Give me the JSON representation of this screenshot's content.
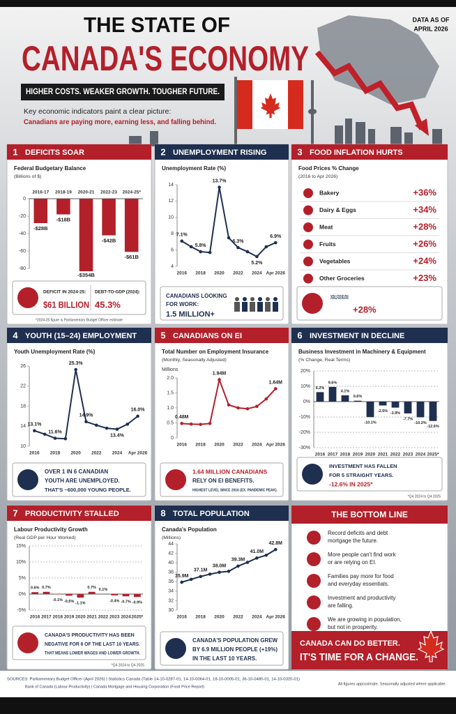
{
  "header": {
    "title_line1": "THE STATE OF",
    "title_line2": "CANADA'S ECONOMY",
    "tagline": "HIGHER COSTS. WEAKER GROWTH. TOUGHER FUTURE.",
    "intro": "Key economic indicators paint a clear picture:",
    "intro_highlight": "Canadians are paying more, earning less, and falling behind.",
    "data_as_of": "DATA AS OF",
    "date": "APRIL 2026"
  },
  "chart_data": [
    {
      "type": "bar",
      "number": "1",
      "heading": "DEFICITS SOAR",
      "subtitle": "Federal Budgetary Balance",
      "unit": "(Billions of $)",
      "categories": [
        "2016-17",
        "2018-19",
        "2020-21",
        "2022-23",
        "2024-25*"
      ],
      "values": [
        -28,
        -18,
        -354,
        -42,
        -61
      ],
      "value_labels": [
        "-$28B",
        "-$18B",
        "-$354B",
        "-$42B",
        "-$61B"
      ],
      "color": "#b3202a",
      "ylim": [
        -80,
        0
      ],
      "yticks": [
        0,
        -20,
        -40,
        -60,
        -80
      ],
      "grid": false,
      "callout": [
        "DEFICIT IN 2024-25:",
        "$61 BILLION",
        "DEBT-TO-GDP (2024):",
        "45.3%"
      ],
      "note": "*2024-25 figure is Parliamentary Budget Officer estimate"
    },
    {
      "type": "line",
      "number": "2",
      "heading": "UNEMPLOYMENT RISING",
      "subtitle": "Unemployment Rate (%)",
      "categories": [
        "2016",
        null,
        "2018",
        null,
        "2020",
        null,
        "2022",
        null,
        "2024",
        null,
        "Apr 2026"
      ],
      "values": [
        7.1,
        6.4,
        5.8,
        5.7,
        13.7,
        7.5,
        6.3,
        5.8,
        5.2,
        6.4,
        6.9
      ],
      "value_labels": [
        "7.1%",
        null,
        "5.8%",
        null,
        "13.7%",
        null,
        "6.3%",
        null,
        "5.2%",
        null,
        "6.9%"
      ],
      "color": "#1f2f4f",
      "ylim": [
        4,
        14
      ],
      "yticks": [
        4,
        6,
        8,
        10,
        12,
        14
      ],
      "grid": false,
      "callout": [
        "CANADIANS LOOKING",
        "FOR WORK:",
        "1.5 MILLION+"
      ]
    },
    {
      "type": "list",
      "number": "3",
      "heading": "FOOD INFLATION HURTS",
      "subtitle": "Food Prices % Change",
      "unit": "(2016 to Apr 2026)",
      "categories": [
        "Bakery",
        "Dairy & Eggs",
        "Meat",
        "Fruits",
        "Vegetables",
        "Other Groceries"
      ],
      "values": [
        36,
        34,
        28,
        26,
        24,
        23
      ],
      "value_labels": [
        "+36%",
        "+34%",
        "+28%",
        "+26%",
        "+24%",
        "+23%"
      ],
      "color": "#b3202a",
      "callout": [
        "OVERALL FOOD INFLATION:",
        "+28%"
      ]
    },
    {
      "type": "line",
      "number": "4",
      "heading": "YOUTH (15–24) EMPLOYMENT",
      "subtitle": "Youth Unemployment Rate (%)",
      "categories": [
        "2016",
        null,
        "2018",
        null,
        "2020",
        null,
        "2022",
        null,
        "2024",
        null,
        "Apr 2026"
      ],
      "values": [
        13.1,
        12.4,
        11.6,
        11.5,
        25.3,
        14.9,
        14.2,
        13.6,
        13.4,
        14.4,
        16.0
      ],
      "value_labels": [
        "13.1%",
        null,
        "11.6%",
        null,
        "25.3%",
        "14.9%",
        null,
        null,
        "13.4%",
        null,
        "16.0%"
      ],
      "color": "#1f2f4f",
      "ylim": [
        10,
        26
      ],
      "yticks": [
        10,
        14,
        18,
        22,
        26
      ],
      "grid": false,
      "callout": [
        "OVER 1 IN 6 CANADIAN",
        "YOUTH ARE UNEMPLOYED.",
        "THAT'S ~600,000 YOUNG PEOPLE."
      ]
    },
    {
      "type": "line",
      "number": "5",
      "heading": "CANADIANS ON EI",
      "subtitle": "Total Number on Employment Insurance",
      "unit": "(Monthly, Seasonally Adjusted)",
      "ylabel": "Millions",
      "categories": [
        "2016",
        null,
        "2018",
        null,
        "2020",
        null,
        "2022",
        null,
        "2024",
        null,
        "Apr 2026"
      ],
      "values": [
        0.48,
        0.46,
        0.45,
        0.48,
        1.94,
        1.1,
        1.0,
        0.97,
        1.05,
        1.3,
        1.64
      ],
      "value_labels": [
        "0.48M",
        null,
        null,
        null,
        "1.94M",
        null,
        null,
        null,
        null,
        null,
        "1.64M"
      ],
      "color": "#b3202a",
      "ylim": [
        0,
        2
      ],
      "yticks": [
        0,
        0.5,
        {
          "value": 1,
          "label": "1.0"
        },
        1.5,
        {
          "value": 2,
          "label": "2.0"
        }
      ],
      "grid": false,
      "callout": [
        "1.64 MILLION CANADIANS",
        "RELY ON EI BENEFITS.",
        "HIGHEST LEVEL SINCE 2016 (EX. PANDEMIC PEAK)."
      ]
    },
    {
      "type": "bar",
      "number": "6",
      "heading": "INVESTMENT IN DECLINE",
      "subtitle": "Business Investment in Machinery & Equipment",
      "unit": "(% Change, Real Terms)",
      "categories": [
        "2016",
        "2017",
        "2018",
        "2019",
        "2020",
        "2021",
        "2022",
        "2023",
        "2024",
        "2025*"
      ],
      "values": [
        6.2,
        9.6,
        4.1,
        0.6,
        -10.1,
        -2.5,
        -3.9,
        -7.7,
        -10.2,
        -12.6
      ],
      "value_labels": [
        "6.2%",
        "9.6%",
        "4.1%",
        "0.6%",
        "-10.1%",
        "-2.5%",
        "-3.9%",
        "-7.7%",
        "-10.2%",
        "-12.6%"
      ],
      "color": "#1f2f4f",
      "ylim": [
        -30,
        20
      ],
      "yticks": [
        {
          "value": 20,
          "label": "20%"
        },
        {
          "value": 10,
          "label": "10%"
        },
        {
          "value": 0,
          "label": "0%"
        },
        {
          "value": -10,
          "label": "-10%"
        },
        {
          "value": -20,
          "label": "-20%"
        },
        {
          "value": -30,
          "label": "-30%"
        }
      ],
      "grid": true,
      "callout": [
        "INVESTMENT HAS FALLEN",
        "FOR 5 STRAIGHT YEARS.",
        "-12.6% IN 2025*"
      ],
      "note": "*Q4 2024 to Q4 2025"
    },
    {
      "type": "bar",
      "number": "7",
      "heading": "PRODUCTIVITY STALLED",
      "subtitle": "Labour Productivity Growth",
      "unit": "(Real GDP per Hour Worked)",
      "categories": [
        "2016",
        "2017",
        "2018",
        "2019",
        "2020",
        "2021",
        "2022",
        "2023",
        "2024",
        "2025*"
      ],
      "values": [
        0.6,
        0.7,
        -0.1,
        -0.5,
        -1.1,
        0.7,
        0.1,
        -0.4,
        -0.7,
        -0.9
      ],
      "value_labels": [
        "0.6%",
        "0.7%",
        "-0.1%",
        "-0.5%",
        "-1.1%",
        "0.7%",
        "0.1%",
        "-0.4%",
        "-0.7%",
        "-0.9%"
      ],
      "color": "#b3202a",
      "ylim": [
        -5,
        15
      ],
      "yticks": [
        {
          "value": 15,
          "label": "15%"
        },
        {
          "value": 10,
          "label": "10%"
        },
        {
          "value": 5,
          "label": "5%"
        },
        {
          "value": 0,
          "label": "0%"
        },
        {
          "value": -5,
          "label": "-5%"
        }
      ],
      "grid": true,
      "callout": [
        "CANADA'S PRODUCTIVITY HAS BEEN",
        "NEGATIVE FOR 6 OF THE LAST 10 YEARS.",
        "THAT MEANS LOWER WAGES AND LOWER GROWTH."
      ],
      "note": "*Q4 2024 to Q4 2025"
    },
    {
      "type": "line",
      "number": "8",
      "heading": "TOTAL POPULATION",
      "subtitle": "Canada's Population",
      "unit": "(Millions)",
      "categories": [
        "2016",
        null,
        "2018",
        null,
        "2020",
        null,
        "2022",
        null,
        "2024",
        null,
        "Apr 2026"
      ],
      "values": [
        35.9,
        36.5,
        37.1,
        37.6,
        38.0,
        38.2,
        39.3,
        40.1,
        41.0,
        41.6,
        42.8
      ],
      "value_labels": [
        "35.9M",
        null,
        "37.1M",
        null,
        "38.0M",
        null,
        "39.3M",
        null,
        "41.0M",
        null,
        "42.8M"
      ],
      "color": "#1f2f4f",
      "ylim": [
        30,
        44
      ],
      "yticks": [
        30,
        32,
        34,
        36,
        38,
        40,
        42,
        44
      ],
      "grid": false,
      "callout": [
        "CANADA'S POPULATION GREW",
        "BY 6.9 MILLION PEOPLE (+19%)",
        "IN THE LAST 10 YEARS."
      ]
    }
  ],
  "bottom_line": {
    "title": "THE BOTTOM LINE",
    "items": [
      [
        "Record deficits and debt",
        "mortgage the future."
      ],
      [
        "More people can't find work",
        "or are relying on EI."
      ],
      [
        "Families pay more for food",
        "and everyday essentials."
      ],
      [
        "Investment and productivity",
        "are falling."
      ],
      [
        "We are growing in population,",
        "but not in prosperity."
      ]
    ],
    "closing": [
      "CANADA CAN DO BETTER.",
      "IT'S TIME FOR A CHANGE."
    ]
  },
  "footer": {
    "sources_line1": "SOURCES: Parliamentary Budget Officer (April 2026)  |  Statistics Canada (Table 14-10-0287-01, 14-10-0064-01, 18-10-0005-01, 36-10-0480-01, 14-10-0320-01)",
    "sources_line2": "Bank of Canada (Labour Productivity)  |  Canada Mortgage and Housing Corporation (Food Price Report)",
    "disclaimer": "All figures approximate. Seasonally adjusted where applicable."
  }
}
